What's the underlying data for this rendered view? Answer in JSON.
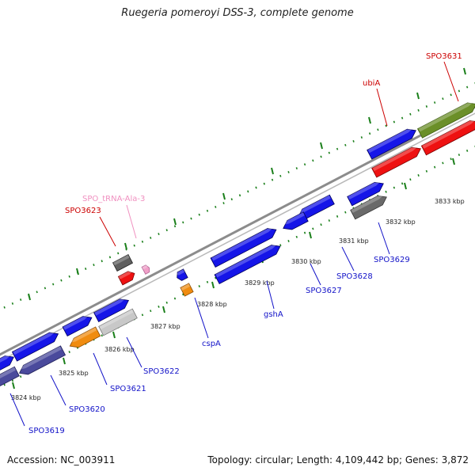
{
  "title": "Ruegeria pomeroyi DSS-3, complete genome",
  "footer": {
    "accession": "Accession: NC_003911",
    "summary": "Topology: circular; Length: 4,109,442 bp; Genes: 3,872"
  },
  "colors": {
    "cds": "#1515e8",
    "rna": "#ee1111",
    "trna": "#f0a0c8",
    "tick": "#1a7f1a",
    "backbone": "#8c8c8c",
    "label_blue": "#1212c8",
    "label_red": "#cc0000",
    "label_pink": "#f090c0"
  },
  "scale": [
    {
      "label": "3824 kbp"
    },
    {
      "label": "3825 kbp"
    },
    {
      "label": "3826 kbp"
    },
    {
      "label": "3827 kbp"
    },
    {
      "label": "3828 kbp"
    },
    {
      "label": "3829 kbp"
    },
    {
      "label": "3830 kbp"
    },
    {
      "label": "3831 kbp"
    },
    {
      "label": "3832 kbp"
    },
    {
      "label": "3833 kbp"
    }
  ],
  "gene_labels": [
    {
      "id": "spo3631",
      "text": "SPO3631",
      "color": "red"
    },
    {
      "id": "ubia",
      "text": "ubiA",
      "color": "red"
    },
    {
      "id": "spo-trna-ala-3",
      "text": "SPO_tRNA-Ala-3",
      "color": "pink"
    },
    {
      "id": "spo3623",
      "text": "SPO3623",
      "color": "red"
    },
    {
      "id": "spo3629",
      "text": "SPO3629",
      "color": "blue"
    },
    {
      "id": "spo3628",
      "text": "SPO3628",
      "color": "blue"
    },
    {
      "id": "spo3627",
      "text": "SPO3627",
      "color": "blue"
    },
    {
      "id": "gsha",
      "text": "gshA",
      "color": "blue"
    },
    {
      "id": "cspa",
      "text": "cspA",
      "color": "blue"
    },
    {
      "id": "spo3622",
      "text": "SPO3622",
      "color": "blue"
    },
    {
      "id": "spo3621",
      "text": "SPO3621",
      "color": "blue"
    },
    {
      "id": "spo3620",
      "text": "SPO3620",
      "color": "blue"
    },
    {
      "id": "spo3619",
      "text": "SPO3619",
      "color": "blue"
    }
  ]
}
